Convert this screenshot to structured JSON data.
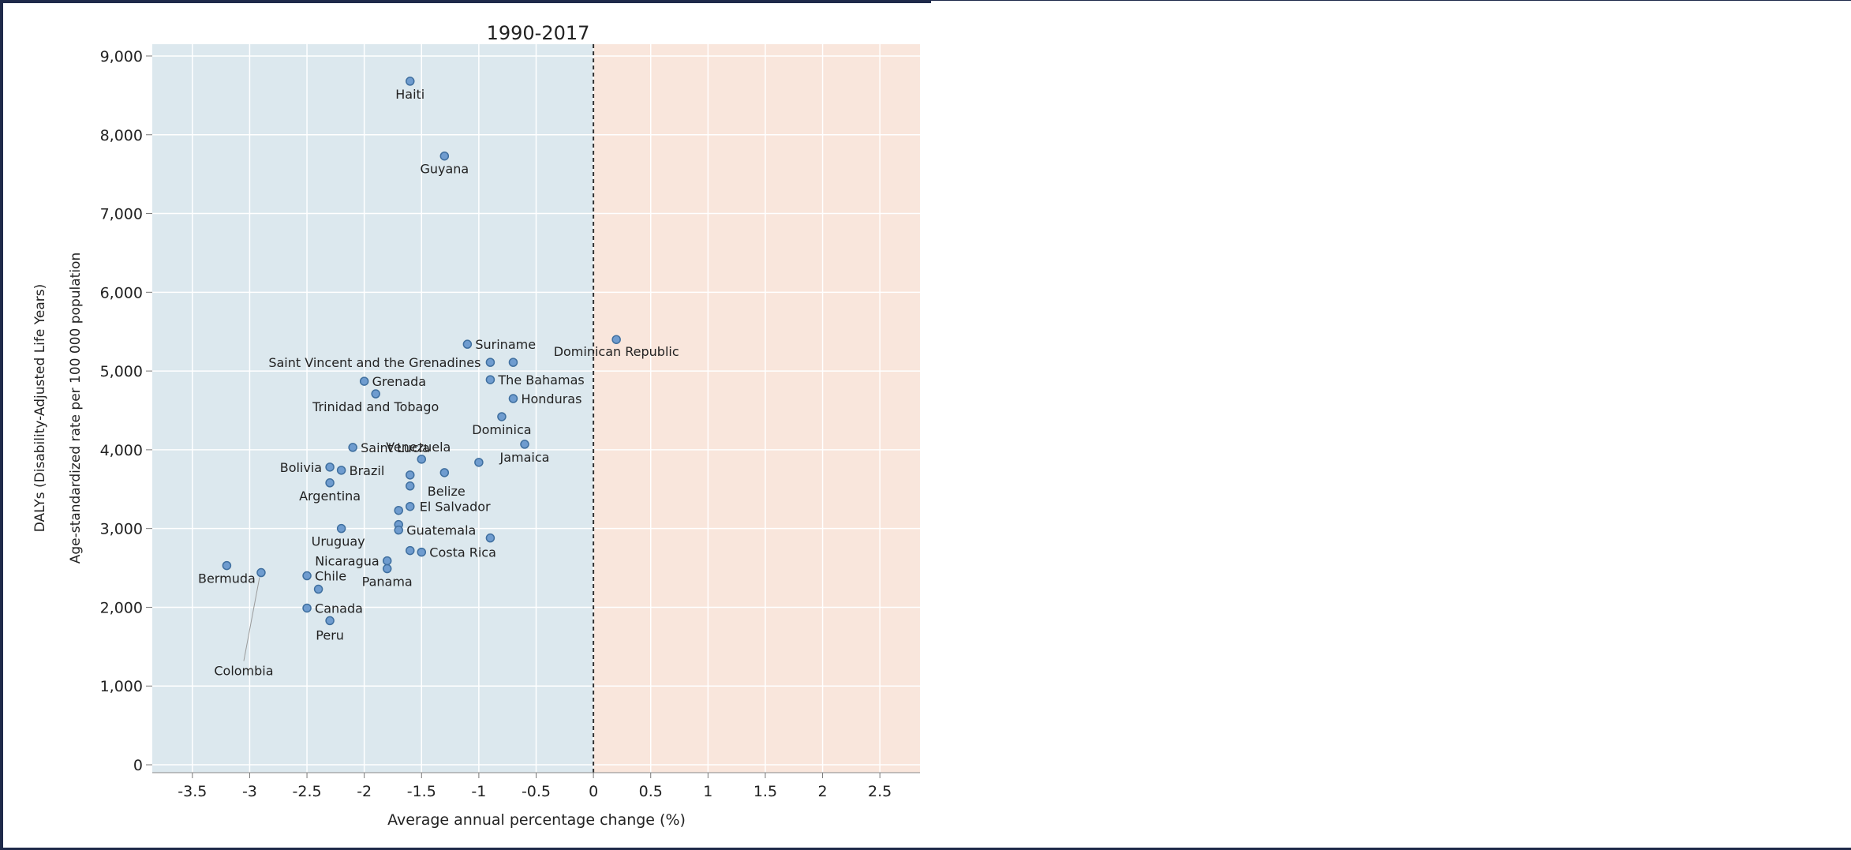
{
  "chart_data": {
    "type": "scatter",
    "title": "1990-2017",
    "xlabel": "Average annual percentage change (%)",
    "ylabel_lines": [
      "Age-standardized rate per 100 000 population",
      "DALYs (Disability-Adjusted Life Years)"
    ],
    "xlim": [
      -3.85,
      2.85
    ],
    "ylim": [
      -100,
      9150
    ],
    "x_ticks": [
      -3.5,
      -3,
      -2.5,
      -2,
      -1.5,
      -1,
      -0.5,
      0,
      0.5,
      1,
      1.5,
      2,
      2.5
    ],
    "x_tick_labels": [
      "-3.5",
      "-3",
      "-2.5",
      "-2",
      "-1.5",
      "-1",
      "-0.5",
      "0",
      "0.5",
      "1",
      "1.5",
      "2",
      "2.5"
    ],
    "y_ticks": [
      0,
      1000,
      2000,
      3000,
      4000,
      5000,
      6000,
      7000,
      8000,
      9000
    ],
    "y_tick_labels": [
      "0",
      "1,000",
      "2,000",
      "3,000",
      "4,000",
      "5,000",
      "6,000",
      "7,000",
      "8,000",
      "9,000"
    ],
    "reference_line_x": 0,
    "grid": true,
    "colors": {
      "negative_region": "#dce8ee",
      "positive_region": "#f9e6dc",
      "point_fill": "#6f9ccf",
      "point_stroke": "#3f6f9f",
      "grid": "#ffffff",
      "text": "#222222"
    },
    "points": [
      {
        "x": -1.6,
        "y": 8680,
        "label": "Haiti"
      },
      {
        "x": -1.3,
        "y": 7730,
        "label": "Guyana"
      },
      {
        "x": 0.2,
        "y": 5400,
        "label": "Dominican Republic"
      },
      {
        "x": -1.1,
        "y": 5340,
        "label": "Suriname"
      },
      {
        "x": -0.9,
        "y": 5110,
        "label": "Saint Vincent and the Grenadines"
      },
      {
        "x": -0.7,
        "y": 5110,
        "label": ""
      },
      {
        "x": -2.0,
        "y": 4870,
        "label": "Grenada"
      },
      {
        "x": -0.9,
        "y": 4890,
        "label": "The Bahamas"
      },
      {
        "x": -1.9,
        "y": 4710,
        "label": "Trinidad and Tobago"
      },
      {
        "x": -0.7,
        "y": 4650,
        "label": "Honduras"
      },
      {
        "x": -0.8,
        "y": 4420,
        "label": "Dominica"
      },
      {
        "x": -0.6,
        "y": 4070,
        "label": "Jamaica"
      },
      {
        "x": -2.1,
        "y": 4030,
        "label": "Saint Lucia"
      },
      {
        "x": -1.5,
        "y": 3880,
        "label": "Venezuela"
      },
      {
        "x": -1.0,
        "y": 3840,
        "label": ""
      },
      {
        "x": -2.3,
        "y": 3780,
        "label": "Bolivia"
      },
      {
        "x": -2.2,
        "y": 3740,
        "label": "Brazil"
      },
      {
        "x": -1.6,
        "y": 3680,
        "label": ""
      },
      {
        "x": -1.3,
        "y": 3710,
        "label": ""
      },
      {
        "x": -2.3,
        "y": 3580,
        "label": "Argentina"
      },
      {
        "x": -1.6,
        "y": 3540,
        "label": "Belize"
      },
      {
        "x": -1.6,
        "y": 3280,
        "label": "El Salvador"
      },
      {
        "x": -1.7,
        "y": 3230,
        "label": ""
      },
      {
        "x": -1.7,
        "y": 3050,
        "label": ""
      },
      {
        "x": -2.2,
        "y": 3000,
        "label": "Uruguay"
      },
      {
        "x": -1.7,
        "y": 2980,
        "label": "Guatemala"
      },
      {
        "x": -0.9,
        "y": 2880,
        "label": ""
      },
      {
        "x": -1.6,
        "y": 2720,
        "label": ""
      },
      {
        "x": -1.5,
        "y": 2700,
        "label": "Costa Rica"
      },
      {
        "x": -1.8,
        "y": 2590,
        "label": "Nicaragua"
      },
      {
        "x": -3.2,
        "y": 2530,
        "label": "Bermuda"
      },
      {
        "x": -1.8,
        "y": 2490,
        "label": "Panama"
      },
      {
        "x": -2.9,
        "y": 2440,
        "label": "Colombia"
      },
      {
        "x": -2.5,
        "y": 2400,
        "label": "Chile"
      },
      {
        "x": -2.4,
        "y": 2230,
        "label": ""
      },
      {
        "x": -2.5,
        "y": 1990,
        "label": "Canada"
      },
      {
        "x": -2.3,
        "y": 1830,
        "label": "Peru"
      }
    ]
  }
}
